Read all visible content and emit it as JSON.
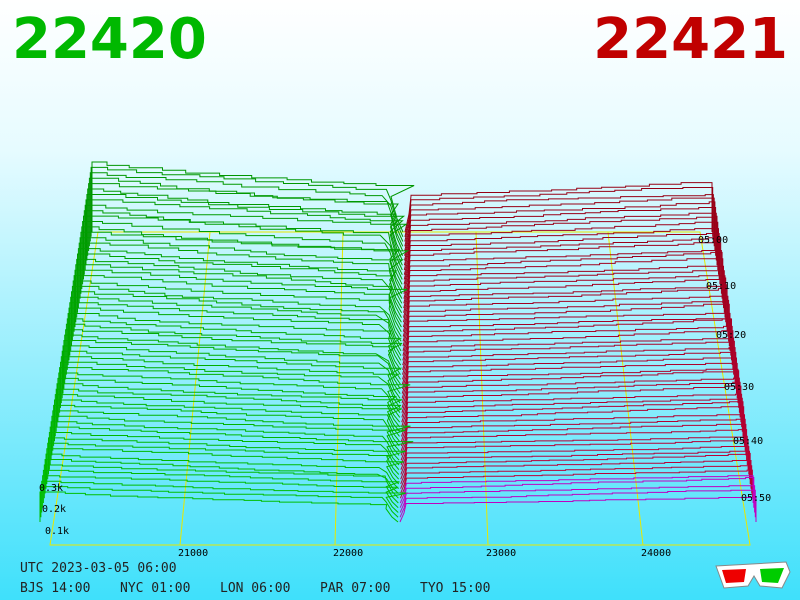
{
  "header": {
    "bid": "22420",
    "ask": "22421"
  },
  "price_axis": {
    "ticks": [
      "21000",
      "22000",
      "23000",
      "24000"
    ]
  },
  "depth_axis": {
    "ticks": [
      "0.1k",
      "0.2k",
      "0.3k"
    ]
  },
  "time_axis": {
    "ticks": [
      "05:00",
      "05:10",
      "05:20",
      "05:30",
      "05:40",
      "05:50"
    ]
  },
  "footer": {
    "utc": "UTC 2023-03-05 06:00",
    "zones": [
      "BJS 14:00",
      "NYC 01:00",
      "LON 06:00",
      "PAR 07:00",
      "TYO 15:00"
    ]
  }
}
